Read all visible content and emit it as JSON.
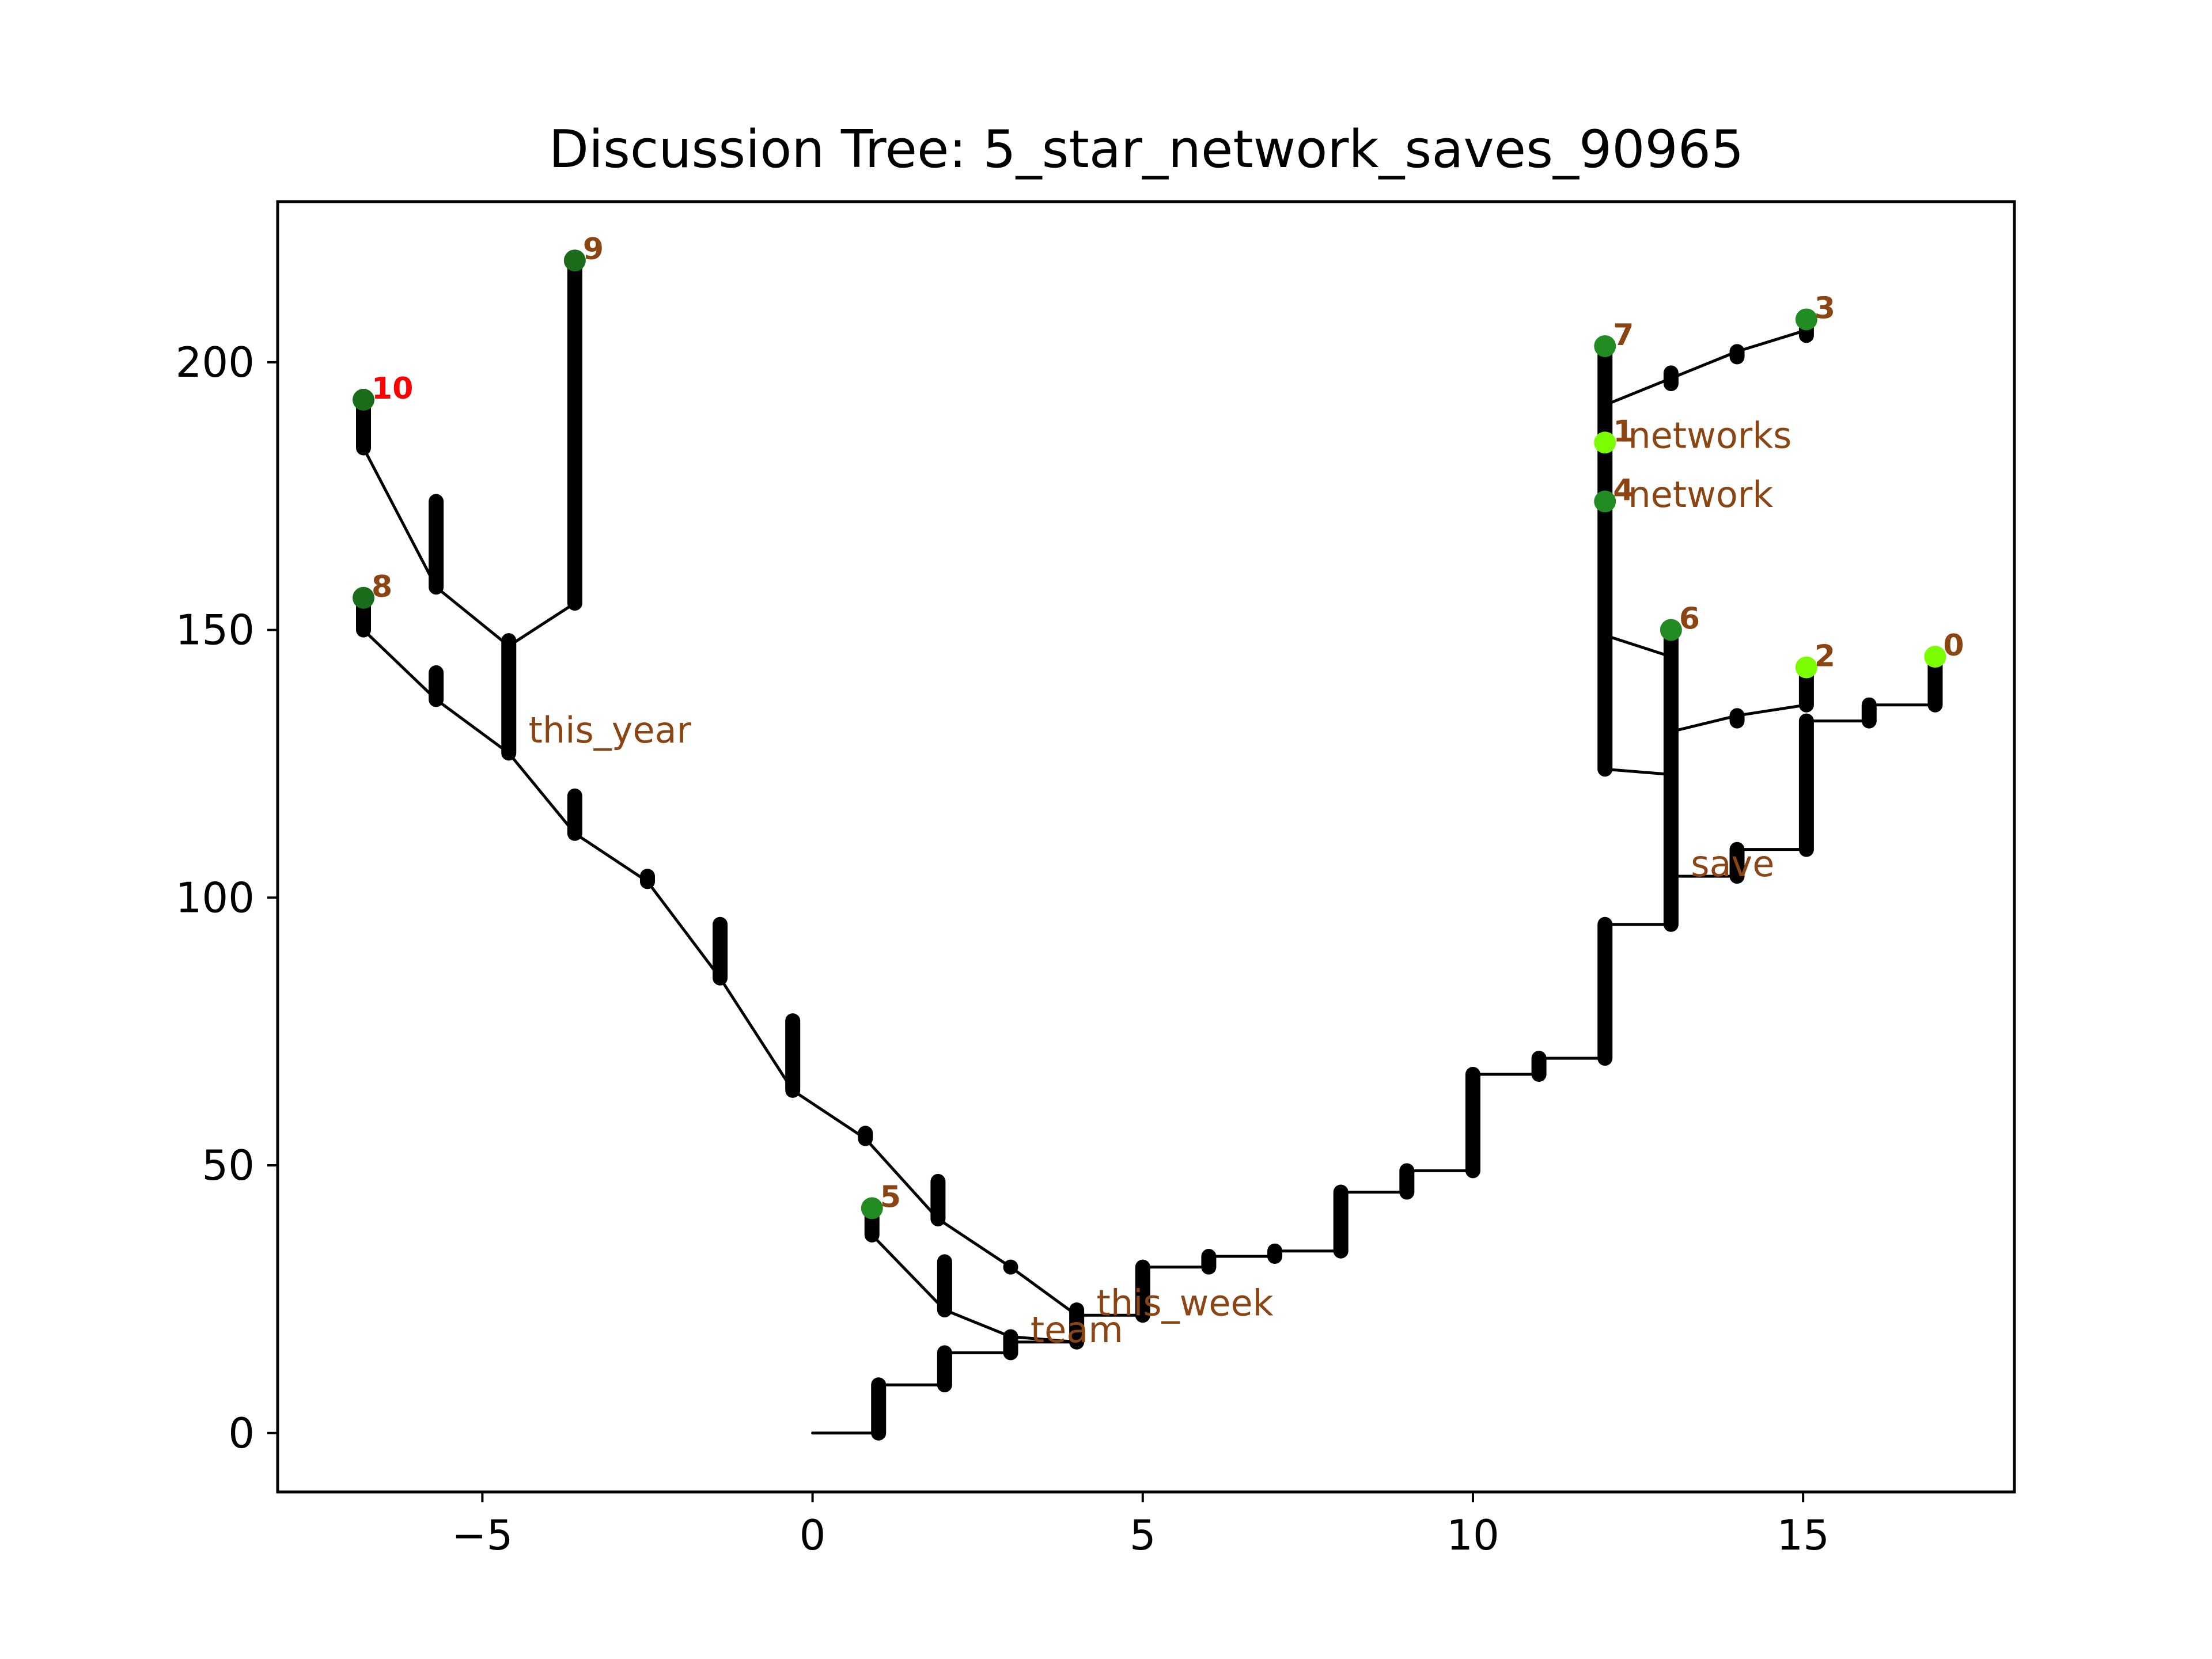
{
  "chart_data": {
    "type": "line",
    "title": "Discussion Tree: 5_star_network_saves_90965",
    "xlabel": "",
    "ylabel": "",
    "xlim": [
      -8.1,
      18.2
    ],
    "ylim": [
      -11,
      230
    ],
    "x_ticks": [
      -5,
      0,
      5,
      10,
      15
    ],
    "x_tick_labels": [
      "−5",
      "0",
      "5",
      "10",
      "15"
    ],
    "y_ticks": [
      0,
      50,
      100,
      150,
      200
    ],
    "y_tick_labels": [
      "0",
      "50",
      "100",
      "150",
      "200"
    ],
    "grid": false,
    "legend": "none",
    "colors": {
      "edge": "#000000",
      "node": "#000000",
      "leaf_dark": "#1a6b1a",
      "leaf_mid": "#228b22",
      "leaf_bright": "#7cfc00",
      "label": "#8b4513",
      "label_highlight": "#ff0000",
      "frame": "#000000"
    },
    "edges": [
      {
        "from": [
          0,
          0
        ],
        "to": [
          1,
          0
        ]
      },
      {
        "from": [
          1,
          9
        ],
        "to": [
          2,
          9
        ]
      },
      {
        "from": [
          2,
          15
        ],
        "to": [
          3,
          15
        ]
      },
      {
        "from": [
          3,
          17
        ],
        "to": [
          4,
          17
        ]
      },
      {
        "from": [
          4,
          22
        ],
        "to": [
          5,
          22
        ]
      },
      {
        "from": [
          5,
          31
        ],
        "to": [
          6,
          31
        ]
      },
      {
        "from": [
          6,
          33
        ],
        "to": [
          7,
          33
        ]
      },
      {
        "from": [
          7,
          34
        ],
        "to": [
          8,
          34
        ]
      },
      {
        "from": [
          8,
          45
        ],
        "to": [
          9,
          45
        ]
      },
      {
        "from": [
          9,
          49
        ],
        "to": [
          10,
          49
        ]
      },
      {
        "from": [
          10,
          67
        ],
        "to": [
          11,
          67
        ]
      },
      {
        "from": [
          11,
          70
        ],
        "to": [
          12,
          70
        ]
      },
      {
        "from": [
          12,
          95
        ],
        "to": [
          13,
          95
        ]
      },
      {
        "from": [
          13,
          104
        ],
        "to": [
          14,
          104
        ]
      },
      {
        "from": [
          14,
          109
        ],
        "to": [
          15.05,
          109
        ]
      },
      {
        "from": [
          15.05,
          133
        ],
        "to": [
          16,
          133
        ]
      },
      {
        "from": [
          16,
          136
        ],
        "to": [
          17,
          136
        ]
      },
      {
        "from": [
          13,
          131
        ],
        "to": [
          14,
          134
        ]
      },
      {
        "from": [
          14,
          134
        ],
        "to": [
          15.05,
          136
        ]
      },
      {
        "from": [
          13,
          123
        ],
        "to": [
          12,
          124
        ]
      },
      {
        "from": [
          13,
          145
        ],
        "to": [
          12,
          149
        ]
      },
      {
        "from": [
          12,
          192
        ],
        "to": [
          13,
          197
        ]
      },
      {
        "from": [
          13,
          197
        ],
        "to": [
          14,
          202
        ]
      },
      {
        "from": [
          14,
          202
        ],
        "to": [
          15.05,
          206
        ]
      },
      {
        "from": [
          4,
          22
        ],
        "to": [
          3,
          31
        ]
      },
      {
        "from": [
          3,
          31
        ],
        "to": [
          1.9,
          40
        ]
      },
      {
        "from": [
          1.9,
          40
        ],
        "to": [
          0.8,
          55
        ]
      },
      {
        "from": [
          0.8,
          55
        ],
        "to": [
          -0.3,
          64
        ]
      },
      {
        "from": [
          -0.3,
          64
        ],
        "to": [
          -1.4,
          85
        ]
      },
      {
        "from": [
          -1.4,
          85
        ],
        "to": [
          -2.5,
          103
        ]
      },
      {
        "from": [
          -2.5,
          103
        ],
        "to": [
          -3.6,
          112
        ]
      },
      {
        "from": [
          -3.6,
          112
        ],
        "to": [
          -4.6,
          127
        ]
      },
      {
        "from": [
          -4.6,
          127
        ],
        "to": [
          -5.7,
          137
        ]
      },
      {
        "from": [
          -5.7,
          137
        ],
        "to": [
          -6.8,
          150
        ]
      },
      {
        "from": [
          -4.6,
          147
        ],
        "to": [
          -5.7,
          158
        ]
      },
      {
        "from": [
          -5.7,
          158
        ],
        "to": [
          -6.8,
          184
        ]
      },
      {
        "from": [
          -4.6,
          147
        ],
        "to": [
          -3.6,
          155
        ]
      },
      {
        "from": [
          4,
          17
        ],
        "to": [
          3,
          18
        ]
      },
      {
        "from": [
          3,
          18
        ],
        "to": [
          2,
          23
        ]
      },
      {
        "from": [
          2,
          23
        ],
        "to": [
          0.9,
          37
        ]
      }
    ],
    "node_stacks": [
      {
        "x": 1,
        "y_from": 0,
        "y_to": 9
      },
      {
        "x": 2,
        "y_from": 9,
        "y_to": 15
      },
      {
        "x": 3,
        "y_from": 15,
        "y_to": 18
      },
      {
        "x": 4,
        "y_from": 17,
        "y_to": 23
      },
      {
        "x": 5,
        "y_from": 22,
        "y_to": 31
      },
      {
        "x": 6,
        "y_from": 31,
        "y_to": 33
      },
      {
        "x": 7,
        "y_from": 33,
        "y_to": 34
      },
      {
        "x": 8,
        "y_from": 34,
        "y_to": 45
      },
      {
        "x": 9,
        "y_from": 45,
        "y_to": 49
      },
      {
        "x": 10,
        "y_from": 49,
        "y_to": 67
      },
      {
        "x": 11,
        "y_from": 67,
        "y_to": 70
      },
      {
        "x": 12,
        "y_from": 70,
        "y_to": 95
      },
      {
        "x": 13,
        "y_from": 95,
        "y_to": 149
      },
      {
        "x": 14,
        "y_from": 104,
        "y_to": 109
      },
      {
        "x": 14,
        "y_from": 133,
        "y_to": 134
      },
      {
        "x": 15.05,
        "y_from": 109,
        "y_to": 133
      },
      {
        "x": 15.05,
        "y_from": 136,
        "y_to": 142
      },
      {
        "x": 16,
        "y_from": 133,
        "y_to": 136
      },
      {
        "x": 17,
        "y_from": 136,
        "y_to": 144
      },
      {
        "x": 12,
        "y_from": 124,
        "y_to": 202
      },
      {
        "x": 13,
        "y_from": 196,
        "y_to": 198
      },
      {
        "x": 14,
        "y_from": 201,
        "y_to": 202
      },
      {
        "x": 15.05,
        "y_from": 205,
        "y_to": 207
      },
      {
        "x": 3,
        "y_from": 31,
        "y_to": 31
      },
      {
        "x": 1.9,
        "y_from": 40,
        "y_to": 47
      },
      {
        "x": 0.8,
        "y_from": 55,
        "y_to": 56
      },
      {
        "x": -0.3,
        "y_from": 64,
        "y_to": 77
      },
      {
        "x": -1.4,
        "y_from": 85,
        "y_to": 95
      },
      {
        "x": -2.5,
        "y_from": 103,
        "y_to": 104
      },
      {
        "x": -3.6,
        "y_from": 112,
        "y_to": 119
      },
      {
        "x": -4.6,
        "y_from": 127,
        "y_to": 148
      },
      {
        "x": -5.7,
        "y_from": 137,
        "y_to": 142
      },
      {
        "x": -6.8,
        "y_from": 150,
        "y_to": 155
      },
      {
        "x": -5.7,
        "y_from": 158,
        "y_to": 174
      },
      {
        "x": -6.8,
        "y_from": 184,
        "y_to": 192
      },
      {
        "x": -3.6,
        "y_from": 155,
        "y_to": 218
      },
      {
        "x": 2,
        "y_from": 23,
        "y_to": 32
      },
      {
        "x": 0.9,
        "y_from": 37,
        "y_to": 41
      }
    ],
    "leaves": [
      {
        "label": "0",
        "x": 17,
        "y": 145,
        "color": "#7cfc00"
      },
      {
        "label": "1",
        "x": 12,
        "y": 185,
        "color": "#7cfc00"
      },
      {
        "label": "2",
        "x": 15.05,
        "y": 143,
        "color": "#7cfc00"
      },
      {
        "label": "3",
        "x": 15.05,
        "y": 208,
        "color": "#228b22"
      },
      {
        "label": "4",
        "x": 12,
        "y": 174,
        "color": "#228b22"
      },
      {
        "label": "5",
        "x": 0.9,
        "y": 42,
        "color": "#228b22"
      },
      {
        "label": "6",
        "x": 13,
        "y": 150,
        "color": "#228b22"
      },
      {
        "label": "7",
        "x": 12,
        "y": 203,
        "color": "#228b22"
      },
      {
        "label": "8",
        "x": -6.8,
        "y": 156,
        "color": "#1a6b1a"
      },
      {
        "label": "9",
        "x": -3.6,
        "y": 219,
        "color": "#1a6b1a"
      },
      {
        "label": "10",
        "x": -6.8,
        "y": 193,
        "color": "#1a6b1a",
        "label_color": "#ff0000"
      }
    ],
    "annotations": [
      {
        "text": "this_year",
        "x": -4.3,
        "y": 129
      },
      {
        "text": "this_week",
        "x": 4.3,
        "y": 22
      },
      {
        "text": "team",
        "x": 3.3,
        "y": 17
      },
      {
        "text": "networks",
        "x": 12.35,
        "y": 184
      },
      {
        "text": "network",
        "x": 12.35,
        "y": 173
      },
      {
        "text": "save",
        "x": 13.3,
        "y": 104
      }
    ]
  }
}
